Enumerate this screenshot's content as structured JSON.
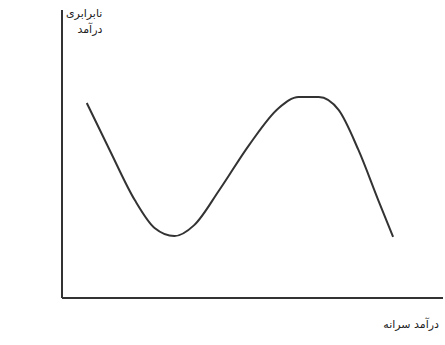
{
  "chart_data": {
    "type": "line",
    "x_label": "درآمد سرانه",
    "y_label": "نابرابری درآمد",
    "x": [
      6.5,
      12.5,
      19.1,
      24.3,
      29.5,
      34.7,
      41.3,
      49.1,
      56.9,
      62.1,
      67.4,
      72.6,
      77.8,
      83,
      86.9
    ],
    "values": [
      67.7,
      51.4,
      34,
      24.3,
      21.5,
      25.3,
      37.5,
      53.1,
      66,
      69.8,
      69.8,
      65.3,
      51.4,
      34,
      21.2
    ],
    "color": "#333333",
    "xlim": [
      0,
      100
    ],
    "ylim": [
      0,
      100
    ],
    "tick_labels": false,
    "grid": false
  }
}
